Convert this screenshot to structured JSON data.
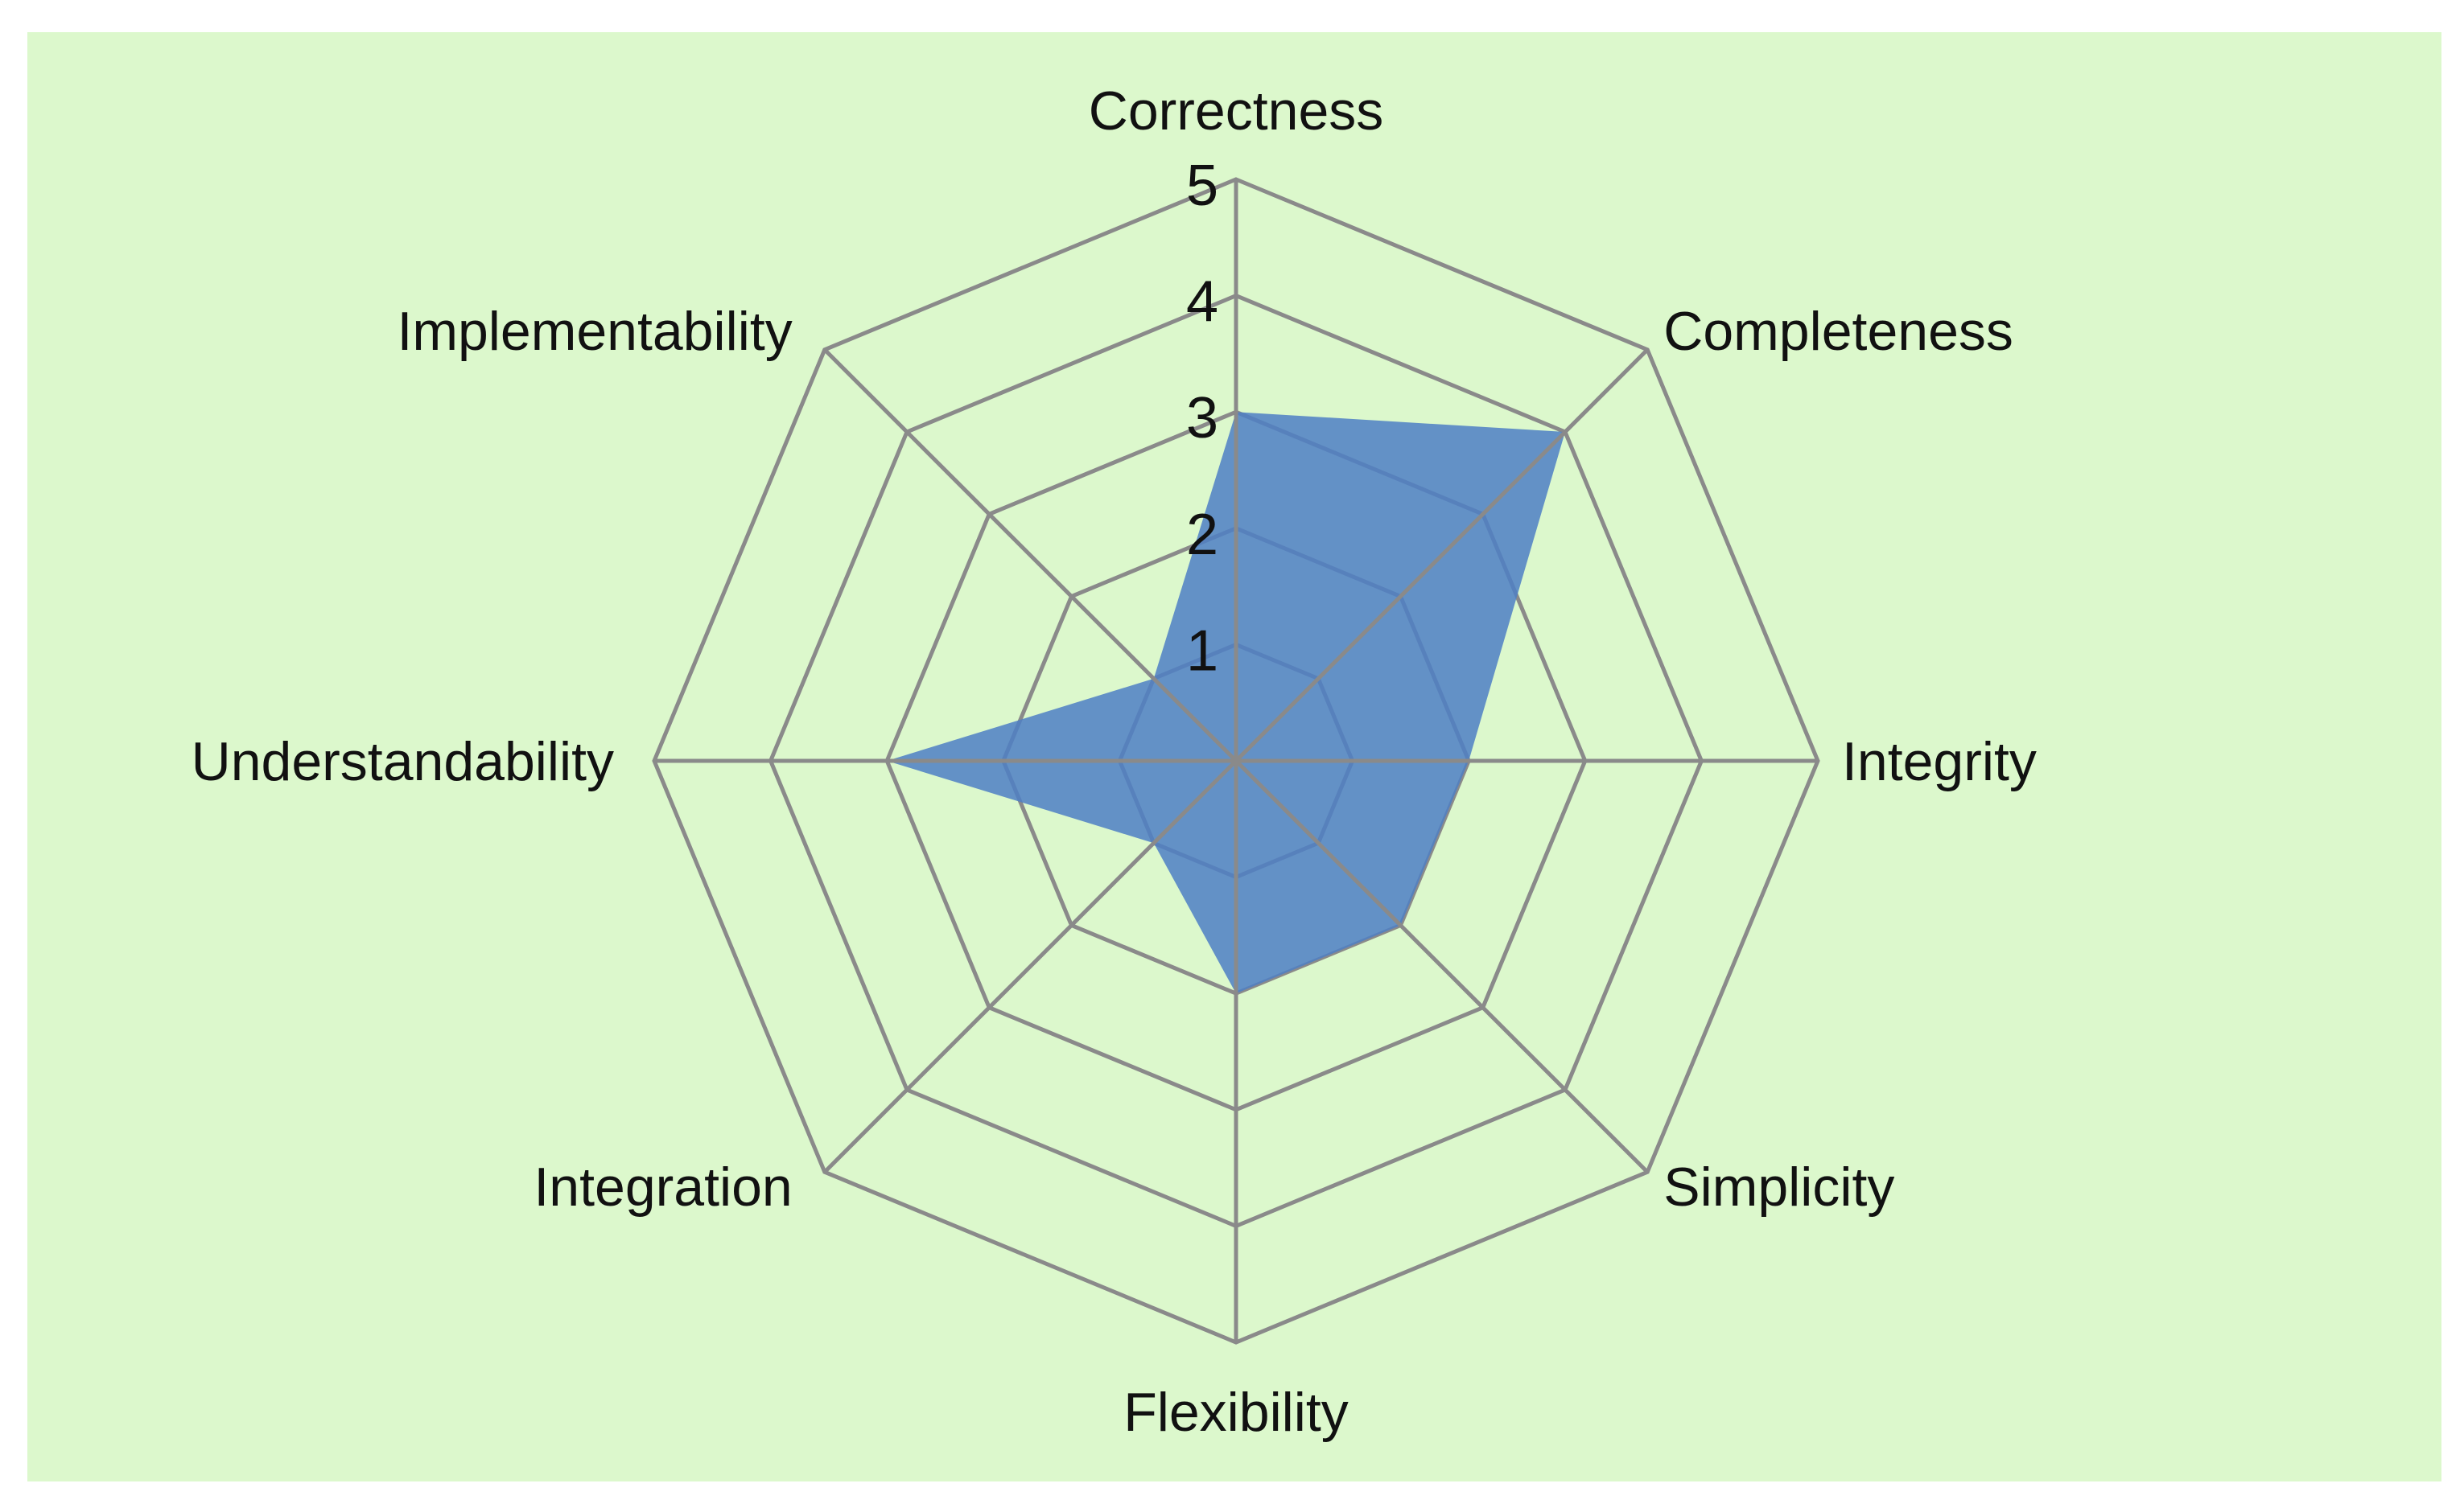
{
  "chart_data": {
    "type": "radar",
    "categories": [
      "Correctness",
      "Completeness",
      "Integrity",
      "Simplicity",
      "Flexibility",
      "Integration",
      "Understandability",
      "Implementability"
    ],
    "series": [
      {
        "values": [
          3,
          4,
          2,
          2,
          2,
          1,
          3,
          1
        ]
      }
    ],
    "r_axis": {
      "min": 0,
      "max": 5,
      "ticks": [
        1,
        2,
        3,
        4,
        5
      ]
    },
    "grid": true,
    "legend": "none",
    "colors": {
      "background": "#dcf8cc",
      "series_fill": "#4e7fc4",
      "grid": "#8a8a8a"
    }
  }
}
